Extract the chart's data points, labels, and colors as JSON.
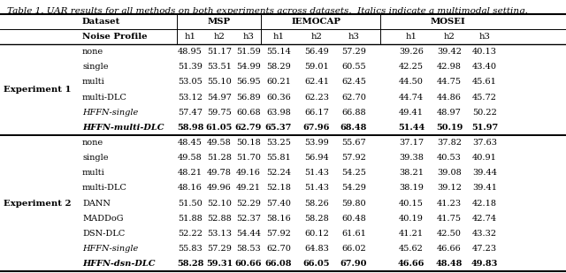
{
  "title": "Table 1. UAR results for all methods on both experiments across datasets.  Italics indicate a multimodal setting.",
  "exp1_label": "Experiment 1",
  "exp2_label": "Experiment 2",
  "col_headers_row1": [
    "Dataset",
    "MSP",
    "IEMOCAP",
    "MOSEI"
  ],
  "col_headers_row2": [
    "Noise Profile",
    "h1",
    "h2",
    "h3",
    "h1",
    "h2",
    "h3",
    "h1",
    "h2",
    "h3"
  ],
  "exp1_rows": [
    [
      "none",
      "48.95",
      "51.17",
      "51.59",
      "55.14",
      "56.49",
      "57.29",
      "39.26",
      "39.42",
      "40.13"
    ],
    [
      "single",
      "51.39",
      "53.51",
      "54.99",
      "58.29",
      "59.01",
      "60.55",
      "42.25",
      "42.98",
      "43.40"
    ],
    [
      "multi",
      "53.05",
      "55.10",
      "56.95",
      "60.21",
      "62.41",
      "62.45",
      "44.50",
      "44.75",
      "45.61"
    ],
    [
      "multi-DLC",
      "53.12",
      "54.97",
      "56.89",
      "60.36",
      "62.23",
      "62.70",
      "44.74",
      "44.86",
      "45.72"
    ],
    [
      "HFFN-single",
      "57.47",
      "59.75",
      "60.68",
      "63.98",
      "66.17",
      "66.88",
      "49.41",
      "48.97",
      "50.22"
    ],
    [
      "HFFN-multi-DLC",
      "58.98",
      "61.05",
      "62.79",
      "65.37",
      "67.96",
      "68.48",
      "51.44",
      "50.19",
      "51.97"
    ]
  ],
  "exp1_italic": [
    false,
    false,
    false,
    false,
    true,
    true
  ],
  "exp1_bold": [
    false,
    false,
    false,
    false,
    false,
    true
  ],
  "exp2_rows": [
    [
      "none",
      "48.45",
      "49.58",
      "50.18",
      "53.25",
      "53.99",
      "55.67",
      "37.17",
      "37.82",
      "37.63"
    ],
    [
      "single",
      "49.58",
      "51.28",
      "51.70",
      "55.81",
      "56.94",
      "57.92",
      "39.38",
      "40.53",
      "40.91"
    ],
    [
      "multi",
      "48.21",
      "49.78",
      "49.16",
      "52.24",
      "51.43",
      "54.25",
      "38.21",
      "39.08",
      "39.44"
    ],
    [
      "multi-DLC",
      "48.16",
      "49.96",
      "49.21",
      "52.18",
      "51.43",
      "54.29",
      "38.19",
      "39.12",
      "39.41"
    ],
    [
      "DANN",
      "51.50",
      "52.10",
      "52.29",
      "57.40",
      "58.26",
      "59.80",
      "40.15",
      "41.23",
      "42.18"
    ],
    [
      "MADDoG",
      "51.88",
      "52.88",
      "52.37",
      "58.16",
      "58.28",
      "60.48",
      "40.19",
      "41.75",
      "42.74"
    ],
    [
      "DSN-DLC",
      "52.22",
      "53.13",
      "54.44",
      "57.92",
      "60.12",
      "61.61",
      "41.21",
      "42.50",
      "43.32"
    ],
    [
      "HFFN-single",
      "55.83",
      "57.29",
      "58.53",
      "62.70",
      "64.83",
      "66.02",
      "45.62",
      "46.66",
      "47.23"
    ],
    [
      "HFFN-dsn-DLC",
      "58.28",
      "59.31",
      "60.66",
      "66.08",
      "66.05",
      "67.90",
      "46.66",
      "48.48",
      "49.83"
    ]
  ],
  "exp2_italic": [
    false,
    false,
    false,
    false,
    false,
    false,
    false,
    true,
    true
  ],
  "exp2_bold": [
    false,
    false,
    false,
    false,
    false,
    false,
    false,
    false,
    true
  ],
  "bg_color": "white",
  "text_color": "black",
  "fontsize": 7.0,
  "title_fontsize": 7.5
}
